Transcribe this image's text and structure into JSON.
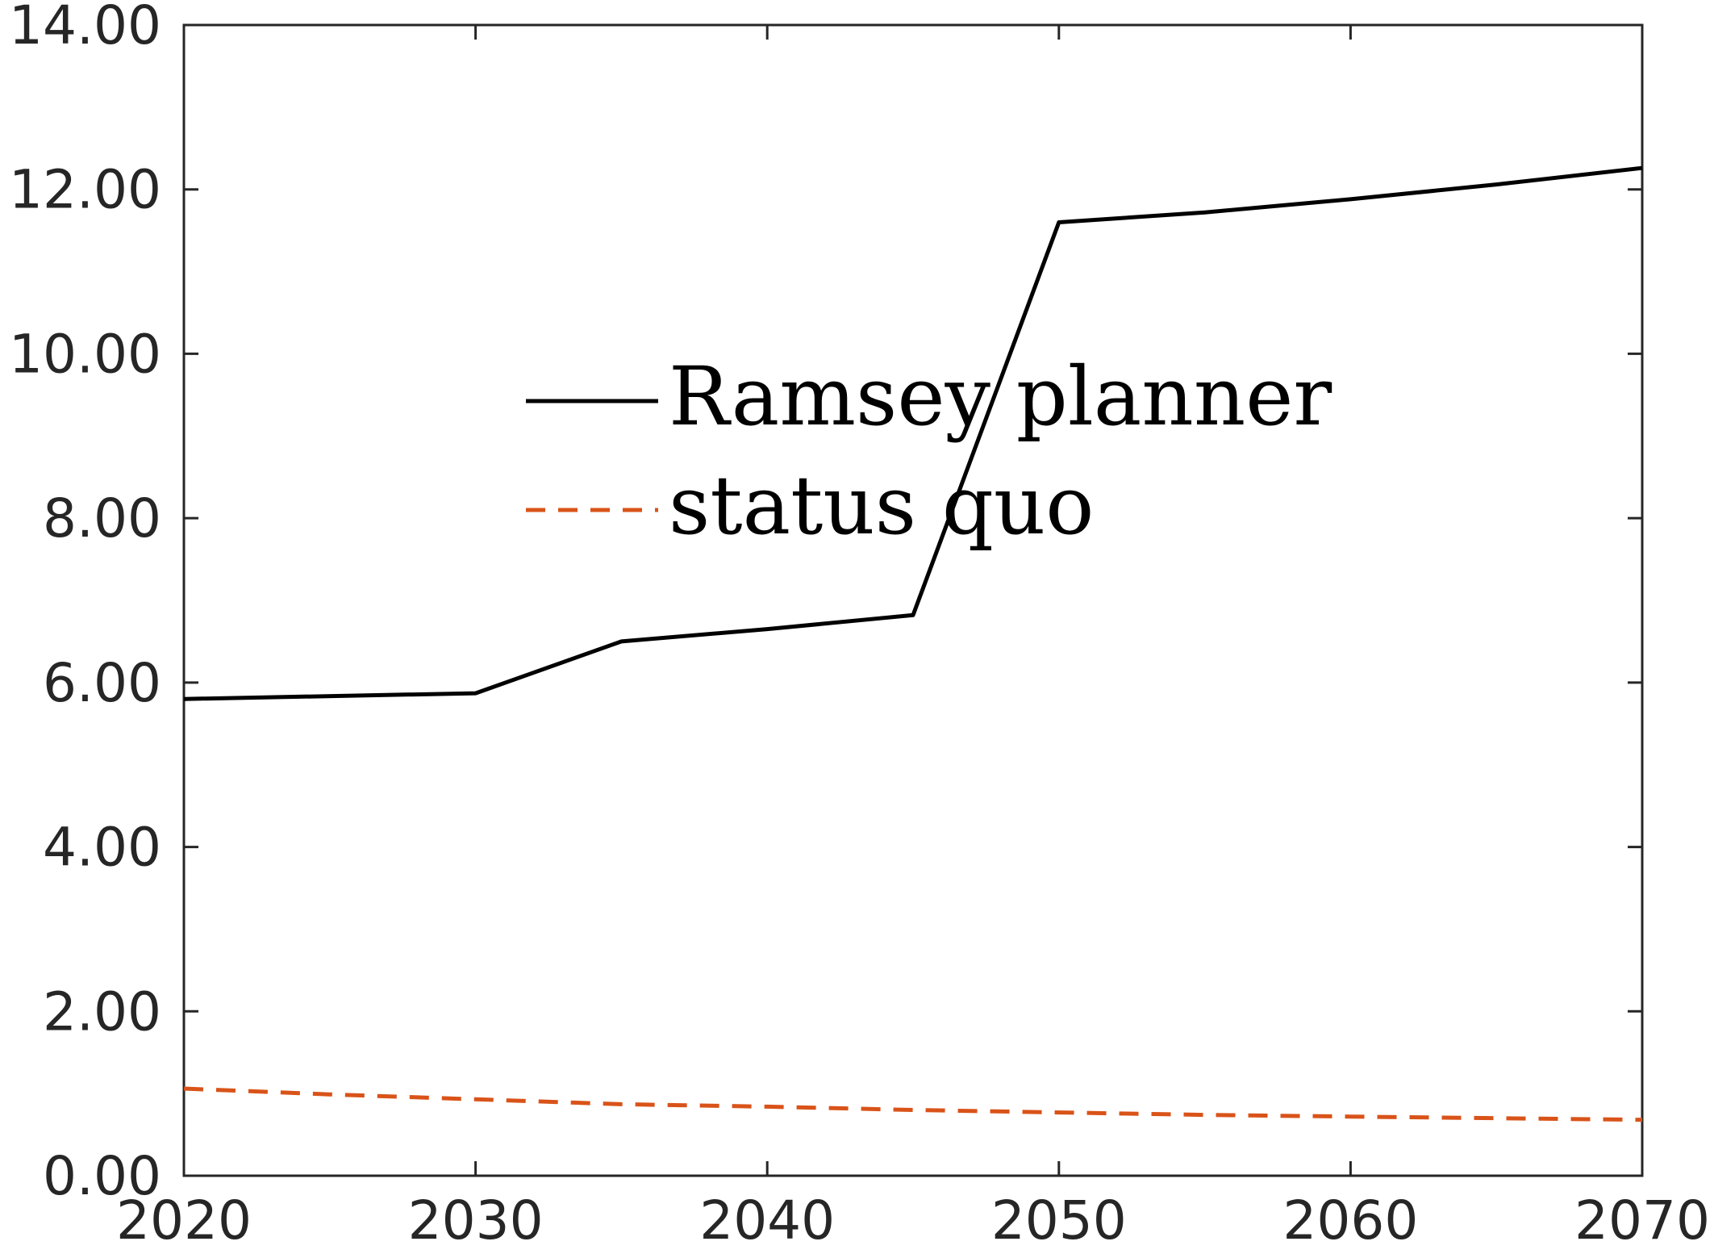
{
  "chart_data": {
    "type": "line",
    "title": "",
    "xlabel": "",
    "ylabel": "",
    "xlim": [
      2020,
      2070
    ],
    "ylim": [
      0,
      14
    ],
    "x_ticks": [
      2020,
      2030,
      2040,
      2050,
      2060,
      2070
    ],
    "x_tick_labels": [
      "2020",
      "2030",
      "2040",
      "2050",
      "2060",
      "2070"
    ],
    "y_ticks": [
      0,
      2,
      4,
      6,
      8,
      10,
      12,
      14
    ],
    "y_tick_labels": [
      "0.00",
      "2.00",
      "4.00",
      "6.00",
      "8.00",
      "10.00",
      "12.00",
      "14.00"
    ],
    "grid": false,
    "legend_position": "center",
    "series": [
      {
        "name": "Ramsey planner",
        "color": "#000000",
        "style": "solid",
        "x": [
          2020,
          2030,
          2035,
          2040,
          2045,
          2050,
          2055,
          2060,
          2065,
          2070
        ],
        "y": [
          5.8,
          5.87,
          6.5,
          6.65,
          6.82,
          11.6,
          11.72,
          11.88,
          12.06,
          12.26
        ]
      },
      {
        "name": "status quo",
        "color": "#d95319",
        "style": "dashed",
        "x": [
          2020,
          2025,
          2030,
          2035,
          2040,
          2045,
          2050,
          2055,
          2060,
          2065,
          2070
        ],
        "y": [
          1.06,
          0.99,
          0.93,
          0.87,
          0.84,
          0.8,
          0.77,
          0.74,
          0.72,
          0.7,
          0.68
        ]
      }
    ]
  }
}
